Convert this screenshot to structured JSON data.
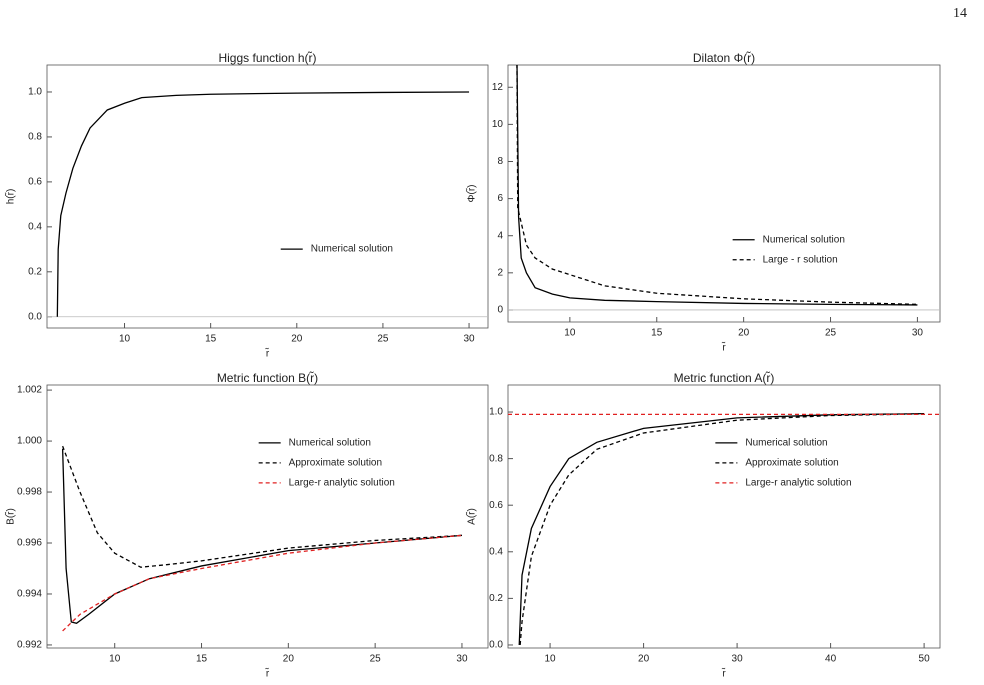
{
  "page_number": "14",
  "chart_data": [
    {
      "type": "line",
      "title": "Higgs function h(r̃)",
      "xlabel": "r̃",
      "ylabel": "h(r̃)",
      "xlim": [
        5.5,
        31.1
      ],
      "ylim": [
        -0.05,
        1.12
      ],
      "xticks": [
        10,
        15,
        20,
        25,
        30
      ],
      "yticks": [
        {
          "value": 0,
          "label": "0.0"
        },
        0.2,
        0.4,
        0.6,
        0.8,
        {
          "value": 1,
          "label": "1.0"
        }
      ],
      "zero_line": true,
      "legend": "center-right",
      "series": [
        {
          "name": "Numerical solution",
          "color": "#000000",
          "linestyle": "solid",
          "x": [
            6.1,
            6.15,
            6.3,
            6.6,
            7,
            7.5,
            8,
            9,
            10,
            11,
            13,
            15,
            20,
            25,
            30
          ],
          "values": [
            0,
            0.3,
            0.45,
            0.55,
            0.66,
            0.76,
            0.84,
            0.92,
            0.95,
            0.975,
            0.985,
            0.99,
            0.995,
            0.998,
            1.0
          ]
        }
      ]
    },
    {
      "type": "line",
      "title": "Dilaton Φ(r̃)",
      "xlabel": "r̃",
      "ylabel": "Φ(r̃)",
      "xlim": [
        6.44,
        31.3
      ],
      "ylim": [
        -0.65,
        13.2
      ],
      "xticks": [
        10,
        15,
        20,
        25,
        30
      ],
      "yticks": [
        0,
        2,
        4,
        6,
        8,
        10,
        12
      ],
      "zero_line": true,
      "legend": "lower-right",
      "series": [
        {
          "name": "Numerical solution",
          "color": "#000000",
          "linestyle": "solid",
          "x": [
            6.95,
            7.05,
            7.2,
            7.5,
            8,
            9,
            10,
            12,
            15,
            20,
            25,
            30
          ],
          "values": [
            14,
            5,
            2.8,
            2.0,
            1.2,
            0.85,
            0.65,
            0.52,
            0.45,
            0.35,
            0.3,
            0.27
          ]
        },
        {
          "name": "Large - r solution",
          "color": "#000000",
          "linestyle": "dashed",
          "x": [
            6.95,
            7,
            7.5,
            8,
            9,
            10,
            12,
            15,
            20,
            25,
            30
          ],
          "values": [
            14,
            5.5,
            3.5,
            2.8,
            2.2,
            1.9,
            1.3,
            0.9,
            0.6,
            0.42,
            0.3
          ]
        }
      ]
    },
    {
      "type": "line",
      "title": "Metric function B(r̃)",
      "xlabel": "r̃",
      "ylabel": "B(r̃)",
      "xlim": [
        6.1,
        31.5
      ],
      "ylim": [
        0.99188,
        1.0022
      ],
      "xticks": [
        10,
        15,
        20,
        25,
        30
      ],
      "yticks": [
        0.992,
        0.994,
        0.996,
        0.998,
        {
          "value": 1,
          "label": "1.000"
        },
        1.002
      ],
      "zero_line": false,
      "legend": "upper-right",
      "series": [
        {
          "name": "Numerical solution",
          "color": "#000000",
          "linestyle": "solid",
          "x": [
            7.0,
            7.2,
            7.5,
            7.8,
            8.5,
            10,
            12,
            15,
            20,
            25,
            30
          ],
          "values": [
            0.9997,
            0.995,
            0.9929,
            0.99285,
            0.9932,
            0.994,
            0.9946,
            0.9951,
            0.9957,
            0.996,
            0.9963
          ]
        },
        {
          "name": "Approximate solution",
          "color": "#000000",
          "linestyle": "dashed",
          "x": [
            7.0,
            8,
            9,
            10,
            11.5,
            13,
            15,
            20,
            25,
            30
          ],
          "values": [
            0.9998,
            0.998,
            0.9964,
            0.9956,
            0.99505,
            0.99515,
            0.9953,
            0.9958,
            0.9961,
            0.9963
          ]
        },
        {
          "name": "Large-r analytic solution",
          "color": "#e02020",
          "linestyle": "dashed",
          "x": [
            7.0,
            8,
            10,
            12,
            15,
            20,
            25,
            30
          ],
          "values": [
            0.99255,
            0.9932,
            0.994,
            0.9946,
            0.995,
            0.9956,
            0.996,
            0.9963
          ]
        }
      ]
    },
    {
      "type": "line",
      "title": "Metric function A(r̃)",
      "xlabel": "r̃",
      "ylabel": "A(r̃)",
      "xlim": [
        5.5,
        51.7
      ],
      "ylim": [
        -0.013,
        1.116
      ],
      "xticks": [
        10,
        20,
        30,
        40,
        50
      ],
      "yticks": [
        {
          "value": 0,
          "label": "0.0"
        },
        0.2,
        0.4,
        0.6,
        0.8,
        {
          "value": 1,
          "label": "1.0"
        }
      ],
      "zero_line": false,
      "legend": "upper-right",
      "series": [
        {
          "name": "Numerical solution",
          "color": "#000000",
          "linestyle": "solid",
          "x": [
            6.7,
            7,
            8,
            10,
            12,
            15,
            20,
            30,
            40,
            50
          ],
          "values": [
            0,
            0.3,
            0.5,
            0.68,
            0.8,
            0.87,
            0.93,
            0.975,
            0.988,
            0.993
          ]
        },
        {
          "name": "Approximate solution",
          "color": "#000000",
          "linestyle": "dashed",
          "x": [
            6.8,
            7,
            8,
            10,
            12,
            15,
            20,
            30,
            40,
            50
          ],
          "values": [
            0,
            0.1,
            0.38,
            0.6,
            0.73,
            0.84,
            0.91,
            0.965,
            0.985,
            0.992
          ]
        },
        {
          "name": "Large-r analytic solution",
          "color": "#e02020",
          "linestyle": "dashed",
          "x": [
            5.5,
            51.7
          ],
          "values": [
            0.99,
            0.99
          ]
        }
      ]
    }
  ]
}
